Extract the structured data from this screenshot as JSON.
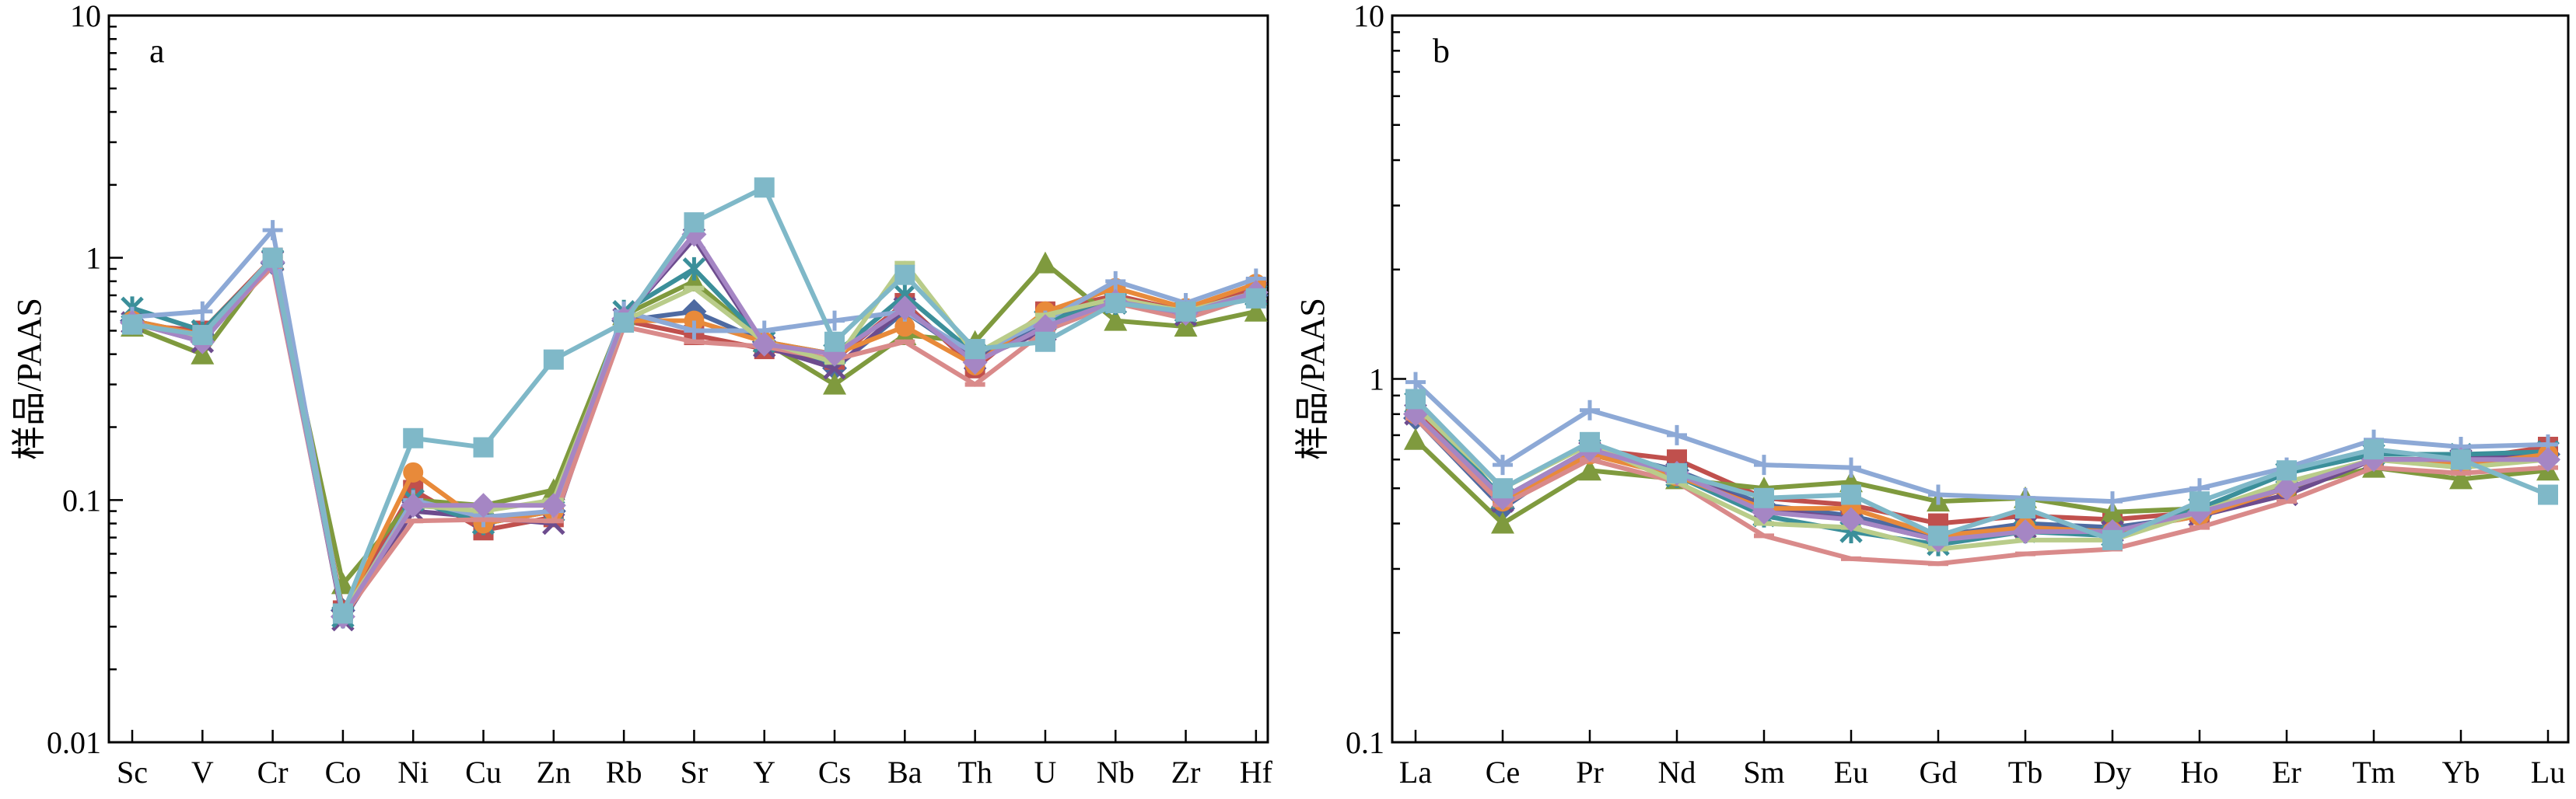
{
  "chart_data": [
    {
      "type": "line",
      "panel_label": "a",
      "ylabel": "样品/PAAS",
      "xlabel": "",
      "yscale": "log",
      "ylim": [
        0.01,
        10
      ],
      "y_ticks": [
        "0.01",
        "0.1",
        "1",
        "10"
      ],
      "categories": [
        "Sc",
        "V",
        "Cr",
        "Co",
        "Ni",
        "Cu",
        "Zn",
        "Rb",
        "Sr",
        "Y",
        "Cs",
        "Ba",
        "Th",
        "U",
        "Nb",
        "Zr",
        "Hf"
      ],
      "series": [
        {
          "color": "#4e6aa1",
          "marker": "diamond",
          "values": [
            0.55,
            0.48,
            0.95,
            0.035,
            0.1,
            0.08,
            0.09,
            0.55,
            0.6,
            0.45,
            0.35,
            0.6,
            0.38,
            0.55,
            0.68,
            0.58,
            0.7
          ]
        },
        {
          "color": "#c0504d",
          "marker": "square",
          "values": [
            0.53,
            0.5,
            1.0,
            0.035,
            0.11,
            0.075,
            0.085,
            0.55,
            0.48,
            0.42,
            0.38,
            0.65,
            0.35,
            0.6,
            0.7,
            0.6,
            0.75
          ]
        },
        {
          "color": "#7f9a3e",
          "marker": "triangle",
          "values": [
            0.52,
            0.4,
            0.98,
            0.045,
            0.1,
            0.095,
            0.11,
            0.58,
            0.8,
            0.45,
            0.3,
            0.48,
            0.45,
            0.95,
            0.55,
            0.52,
            0.6
          ]
        },
        {
          "color": "#6d4c8e",
          "marker": "x",
          "values": [
            0.54,
            0.45,
            0.97,
            0.032,
            0.09,
            0.085,
            0.08,
            0.56,
            1.2,
            0.43,
            0.35,
            0.62,
            0.38,
            0.5,
            0.65,
            0.58,
            0.72
          ]
        },
        {
          "color": "#3b8f9a",
          "marker": "star",
          "values": [
            0.62,
            0.5,
            0.98,
            0.033,
            0.1,
            0.08,
            0.09,
            0.6,
            0.9,
            0.45,
            0.4,
            0.7,
            0.4,
            0.55,
            0.65,
            0.6,
            0.7
          ]
        },
        {
          "color": "#e88a3a",
          "marker": "circle",
          "values": [
            0.55,
            0.48,
            1.0,
            0.034,
            0.13,
            0.08,
            0.09,
            0.55,
            0.55,
            0.45,
            0.4,
            0.52,
            0.36,
            0.6,
            0.75,
            0.62,
            0.78
          ]
        },
        {
          "color": "#8da9d6",
          "marker": "plus",
          "values": [
            0.57,
            0.6,
            1.3,
            0.033,
            0.1,
            0.085,
            0.09,
            0.6,
            0.5,
            0.5,
            0.55,
            0.6,
            0.4,
            0.55,
            0.8,
            0.65,
            0.82
          ]
        },
        {
          "color": "#d98a8a",
          "marker": "dash",
          "values": [
            0.53,
            0.47,
            0.92,
            0.033,
            0.082,
            0.083,
            0.082,
            0.52,
            0.45,
            0.43,
            0.38,
            0.45,
            0.3,
            0.5,
            0.65,
            0.56,
            0.7
          ]
        },
        {
          "color": "#b9cc8a",
          "marker": "dash",
          "values": [
            0.54,
            0.46,
            1.0,
            0.034,
            0.095,
            0.09,
            0.1,
            0.55,
            0.75,
            0.45,
            0.37,
            0.95,
            0.4,
            0.58,
            0.68,
            0.6,
            0.72
          ]
        },
        {
          "color": "#a586c4",
          "marker": "diamond",
          "values": [
            0.54,
            0.45,
            0.96,
            0.033,
            0.095,
            0.095,
            0.095,
            0.56,
            1.25,
            0.44,
            0.4,
            0.62,
            0.37,
            0.52,
            0.66,
            0.59,
            0.72
          ]
        },
        {
          "color": "#7fb8c8",
          "marker": "square",
          "values": [
            0.53,
            0.48,
            1.0,
            0.034,
            0.18,
            0.165,
            0.38,
            0.54,
            1.4,
            1.95,
            0.45,
            0.85,
            0.42,
            0.45,
            0.65,
            0.6,
            0.68
          ]
        }
      ]
    },
    {
      "type": "line",
      "panel_label": "b",
      "ylabel": "样品/PAAS",
      "xlabel": "",
      "yscale": "log",
      "ylim": [
        0.1,
        10
      ],
      "y_ticks": [
        "0.1",
        "1",
        "10"
      ],
      "categories": [
        "La",
        "Ce",
        "Pr",
        "Nd",
        "Sm",
        "Eu",
        "Gd",
        "Tb",
        "Dy",
        "Ho",
        "Er",
        "Tm",
        "Yb",
        "Lu"
      ],
      "series": [
        {
          "color": "#4e6aa1",
          "marker": "diamond",
          "values": [
            0.78,
            0.44,
            0.64,
            0.56,
            0.45,
            0.42,
            0.37,
            0.4,
            0.39,
            0.42,
            0.5,
            0.6,
            0.6,
            0.62
          ]
        },
        {
          "color": "#c0504d",
          "marker": "square",
          "values": [
            0.82,
            0.47,
            0.64,
            0.6,
            0.47,
            0.45,
            0.4,
            0.42,
            0.41,
            0.43,
            0.5,
            0.6,
            0.6,
            0.65
          ]
        },
        {
          "color": "#7f9a3e",
          "marker": "triangle",
          "values": [
            0.68,
            0.4,
            0.56,
            0.53,
            0.5,
            0.52,
            0.46,
            0.47,
            0.43,
            0.44,
            0.5,
            0.57,
            0.53,
            0.56
          ]
        },
        {
          "color": "#6d4c8e",
          "marker": "x",
          "values": [
            0.8,
            0.46,
            0.63,
            0.55,
            0.44,
            0.41,
            0.36,
            0.39,
            0.38,
            0.42,
            0.48,
            0.6,
            0.6,
            0.63
          ]
        },
        {
          "color": "#3b8f9a",
          "marker": "star",
          "values": [
            0.86,
            0.47,
            0.64,
            0.54,
            0.42,
            0.38,
            0.35,
            0.38,
            0.37,
            0.44,
            0.55,
            0.62,
            0.62,
            0.63
          ]
        },
        {
          "color": "#e88a3a",
          "marker": "circle",
          "values": [
            0.8,
            0.46,
            0.62,
            0.54,
            0.44,
            0.44,
            0.37,
            0.39,
            0.38,
            0.42,
            0.5,
            0.6,
            0.58,
            0.62
          ]
        },
        {
          "color": "#8da9d6",
          "marker": "plus",
          "values": [
            0.98,
            0.58,
            0.82,
            0.7,
            0.58,
            0.57,
            0.48,
            0.47,
            0.46,
            0.5,
            0.57,
            0.68,
            0.65,
            0.66
          ]
        },
        {
          "color": "#d98a8a",
          "marker": "dash",
          "values": [
            0.78,
            0.45,
            0.6,
            0.52,
            0.37,
            0.32,
            0.31,
            0.33,
            0.34,
            0.39,
            0.46,
            0.57,
            0.55,
            0.57
          ]
        },
        {
          "color": "#b9cc8a",
          "marker": "dash",
          "values": [
            0.84,
            0.5,
            0.66,
            0.52,
            0.4,
            0.39,
            0.34,
            0.36,
            0.36,
            0.43,
            0.52,
            0.6,
            0.57,
            0.6
          ]
        },
        {
          "color": "#a586c4",
          "marker": "diamond",
          "values": [
            0.8,
            0.47,
            0.64,
            0.55,
            0.43,
            0.41,
            0.36,
            0.38,
            0.38,
            0.43,
            0.5,
            0.6,
            0.6,
            0.6
          ]
        },
        {
          "color": "#7fb8c8",
          "marker": "square",
          "values": [
            0.88,
            0.5,
            0.67,
            0.55,
            0.47,
            0.48,
            0.37,
            0.44,
            0.36,
            0.46,
            0.56,
            0.64,
            0.6,
            0.48
          ]
        }
      ]
    }
  ]
}
